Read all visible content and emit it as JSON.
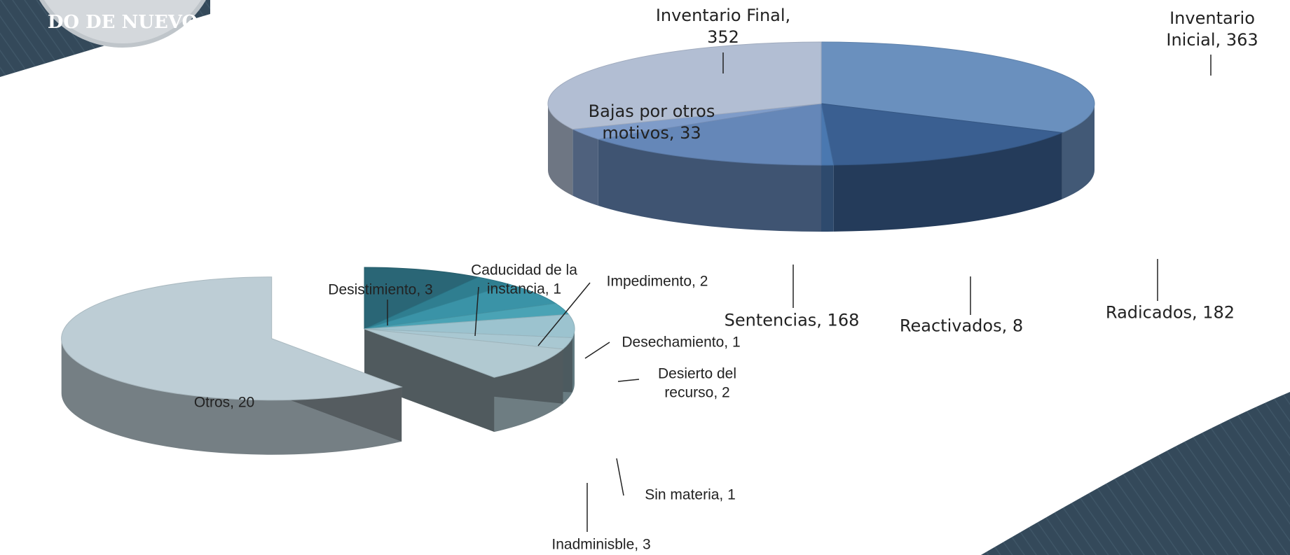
{
  "logo_text": "DO DE NUEVO",
  "chart_data": [
    {
      "type": "pie",
      "values": [
        363,
        182,
        8,
        168,
        33,
        352
      ],
      "value_labels": [
        "Inventario Inicial, 363",
        "Radicados, 182",
        "Reactivados, 8",
        "Sentencias, 168",
        "Bajas por otros motivos, 33",
        "Inventario Final, 352"
      ],
      "colors": [
        "#6a90be",
        "#3a5f91",
        "#4a78b0",
        "#6587b8",
        "#7f9cc9",
        "#b2bed3"
      ]
    },
    {
      "type": "pie",
      "values": [
        3,
        1,
        2,
        1,
        2,
        1,
        3,
        20
      ],
      "value_labels": [
        "Desistimiento, 3",
        "Caducidad de la instancia, 1",
        "Impedimento, 2",
        "Desechamiento, 1",
        "Desierto del recurso, 2",
        "Sin materia, 1",
        "Inadminisble, 3",
        "Otros, 20"
      ],
      "colors": [
        "#2a6676",
        "#2f7e90",
        "#3a93a7",
        "#4aa3b5",
        "#9cc3cf",
        "#a9c8d2",
        "#b1c9d1",
        "#bdcdd5"
      ],
      "explode": [
        false,
        false,
        false,
        false,
        false,
        false,
        false,
        true
      ]
    }
  ]
}
